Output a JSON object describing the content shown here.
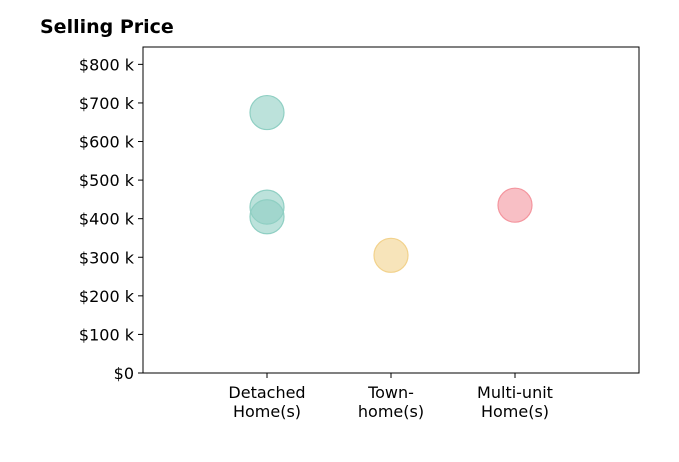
{
  "chart_data": {
    "type": "scatter",
    "title": "Selling Price",
    "categories": [
      "Detached\nHome(s)",
      "Town-\nhome(s)",
      "Multi-unit\nHome(s)"
    ],
    "y_ticks": [
      "$0",
      "$100 k",
      "$200 k",
      "$300 k",
      "$400 k",
      "$500 k",
      "$600 k",
      "$700 k",
      "$800 k"
    ],
    "ylim": [
      0,
      845000
    ],
    "xlim": [
      0,
      4
    ],
    "grid": false,
    "series": [
      {
        "category_index": 1,
        "color": "#8fcfc3",
        "values": [
          675000,
          430000,
          405000
        ]
      },
      {
        "category_index": 2,
        "color": "#f2d28c",
        "values": [
          305000
        ]
      },
      {
        "category_index": 3,
        "color": "#f4959e",
        "values": [
          435000
        ]
      }
    ]
  }
}
